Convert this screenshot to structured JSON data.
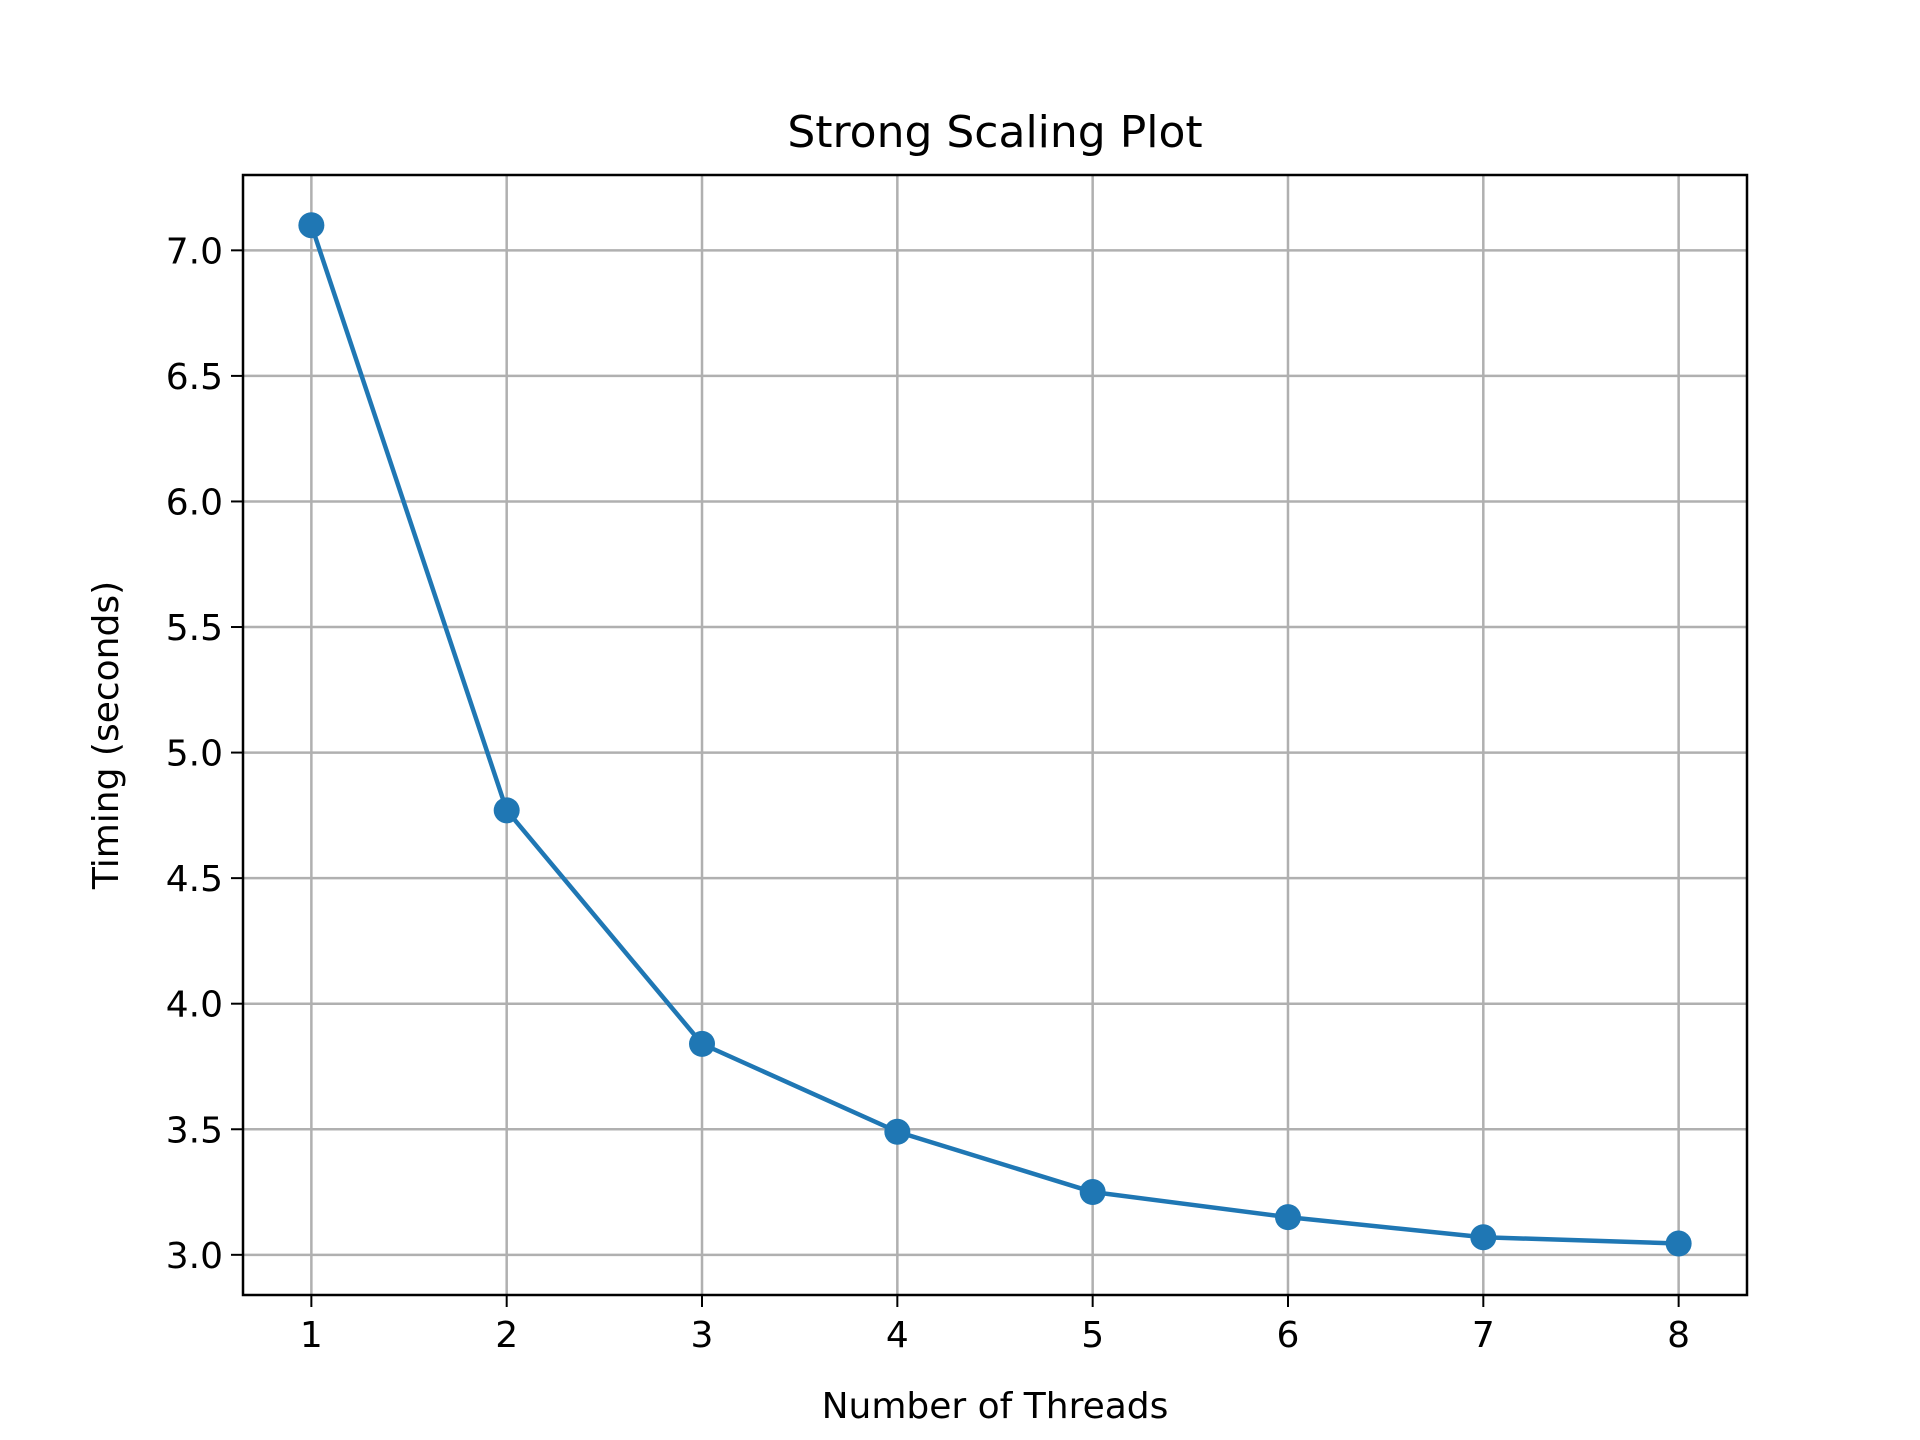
{
  "chart_data": {
    "type": "line",
    "title": "Strong Scaling Plot",
    "xlabel": "Number of Threads",
    "ylabel": "Timing (seconds)",
    "x": [
      1,
      2,
      3,
      4,
      5,
      6,
      7,
      8
    ],
    "series": [
      {
        "values": [
          7.1,
          4.77,
          3.84,
          3.49,
          3.25,
          3.15,
          3.07,
          3.045
        ],
        "color": "#1f77b4",
        "marker": "circle"
      }
    ],
    "xticks": [
      "1",
      "2",
      "3",
      "4",
      "5",
      "6",
      "7",
      "8"
    ],
    "yticks": [
      "3.0",
      "3.5",
      "4.0",
      "4.5",
      "5.0",
      "5.5",
      "6.0",
      "6.5",
      "7.0"
    ],
    "xlim": [
      0.65,
      8.35
    ],
    "ylim": [
      2.84,
      7.3
    ],
    "grid": true,
    "legend": "none"
  }
}
